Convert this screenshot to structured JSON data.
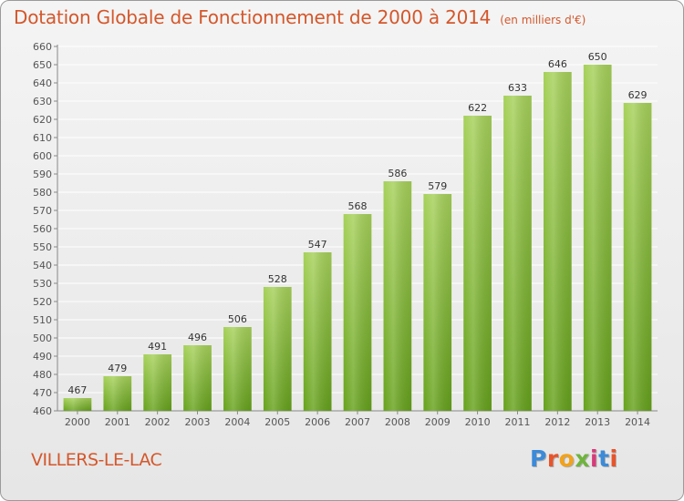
{
  "header": {
    "title": "Dotation Globale de Fonctionnement de 2000 à 2014",
    "unit": "(en milliers d'€)"
  },
  "footer": {
    "commune": "VILLERS-LE-LAC",
    "logo": "Proxiti",
    "logo_colors": [
      "#3c8ad8",
      "#e8542a",
      "#f2a21b",
      "#6fb43c",
      "#d63b7a",
      "#3c8ad8",
      "#e8542a"
    ]
  },
  "colors": {
    "bar_light": "#a6d15a",
    "bar_dark": "#66a21c",
    "title": "#d4572b",
    "grid": "#ffffff"
  },
  "chart_data": {
    "type": "bar",
    "title": "Dotation Globale de Fonctionnement de 2000 à 2014",
    "subtitle": "(en milliers d'€)",
    "xlabel": "",
    "ylabel": "",
    "categories": [
      "2000",
      "2001",
      "2002",
      "2003",
      "2004",
      "2005",
      "2006",
      "2007",
      "2008",
      "2009",
      "2010",
      "2011",
      "2012",
      "2013",
      "2014"
    ],
    "values": [
      467,
      479,
      491,
      496,
      506,
      528,
      547,
      568,
      586,
      579,
      622,
      633,
      646,
      650,
      629
    ],
    "ylim": [
      460,
      660
    ],
    "ytick_step": 10,
    "yticks": [
      "460",
      "470",
      "480",
      "490",
      "500",
      "510",
      "520",
      "530",
      "540",
      "550",
      "560",
      "570",
      "580",
      "590",
      "600",
      "610",
      "620",
      "630",
      "640",
      "650",
      "660"
    ],
    "grid": true,
    "legend": "none"
  }
}
